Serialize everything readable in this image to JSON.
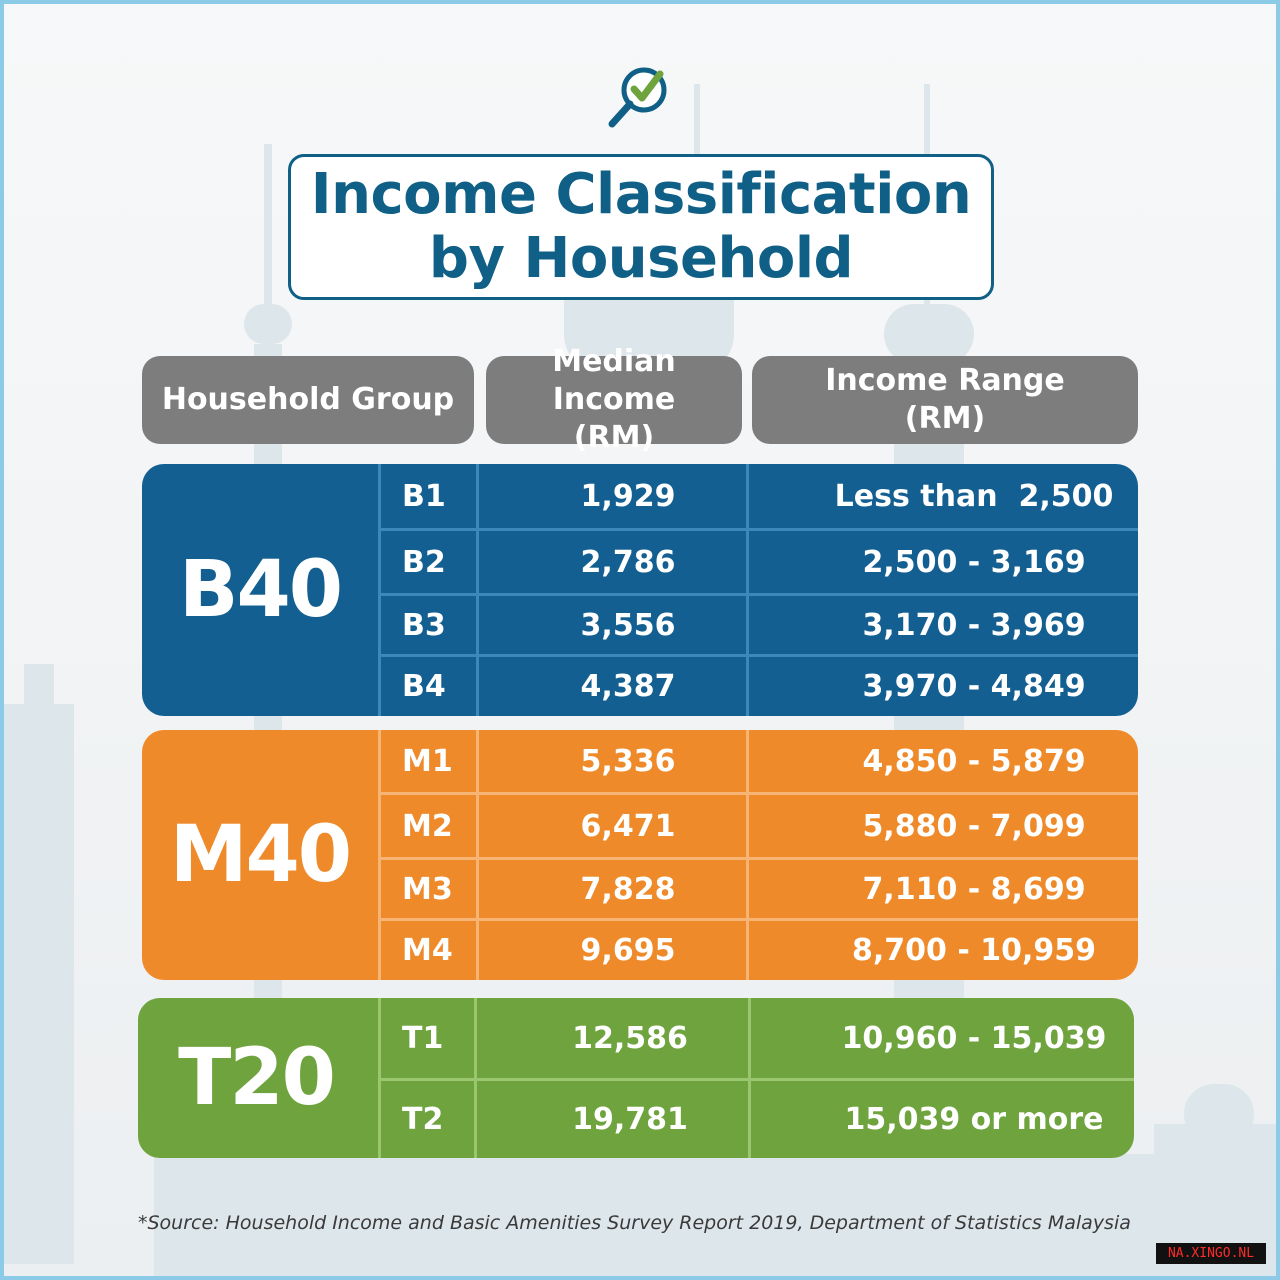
{
  "title": {
    "line1": "Income Classification",
    "line2": "by Household"
  },
  "logo_icon": "magnifier-check-icon",
  "headers": {
    "group": "Household Group",
    "median_line1": "Median Income",
    "median_line2": "(RM)",
    "range_line1": "Income Range",
    "range_line2": "(RM)"
  },
  "groups": [
    {
      "label": "B40",
      "color": "#145f91",
      "rows": [
        {
          "code": "B1",
          "median": "1,929",
          "range": "Less than  2,500"
        },
        {
          "code": "B2",
          "median": "2,786",
          "range": "2,500 - 3,169"
        },
        {
          "code": "B3",
          "median": "3,556",
          "range": "3,170 - 3,969"
        },
        {
          "code": "B4",
          "median": "4,387",
          "range": "3,970 - 4,849"
        }
      ]
    },
    {
      "label": "M40",
      "color": "#ef8a2a",
      "rows": [
        {
          "code": "M1",
          "median": "5,336",
          "range": "4,850 - 5,879"
        },
        {
          "code": "M2",
          "median": "6,471",
          "range": "5,880 - 7,099"
        },
        {
          "code": "M3",
          "median": "7,828",
          "range": "7,110 - 8,699"
        },
        {
          "code": "M4",
          "median": "9,695",
          "range": "8,700 - 10,959"
        }
      ]
    },
    {
      "label": "T20",
      "color": "#6ea33e",
      "rows": [
        {
          "code": "T1",
          "median": "12,586",
          "range": "10,960 - 15,039"
        },
        {
          "code": "T2",
          "median": "19,781",
          "range": "15,039 or more"
        }
      ]
    }
  ],
  "source": "*Source:  Household Income and Basic Amenities Survey Report 2019, Department of Statistics Malaysia",
  "watermark": "NA.XINGO.NL"
}
